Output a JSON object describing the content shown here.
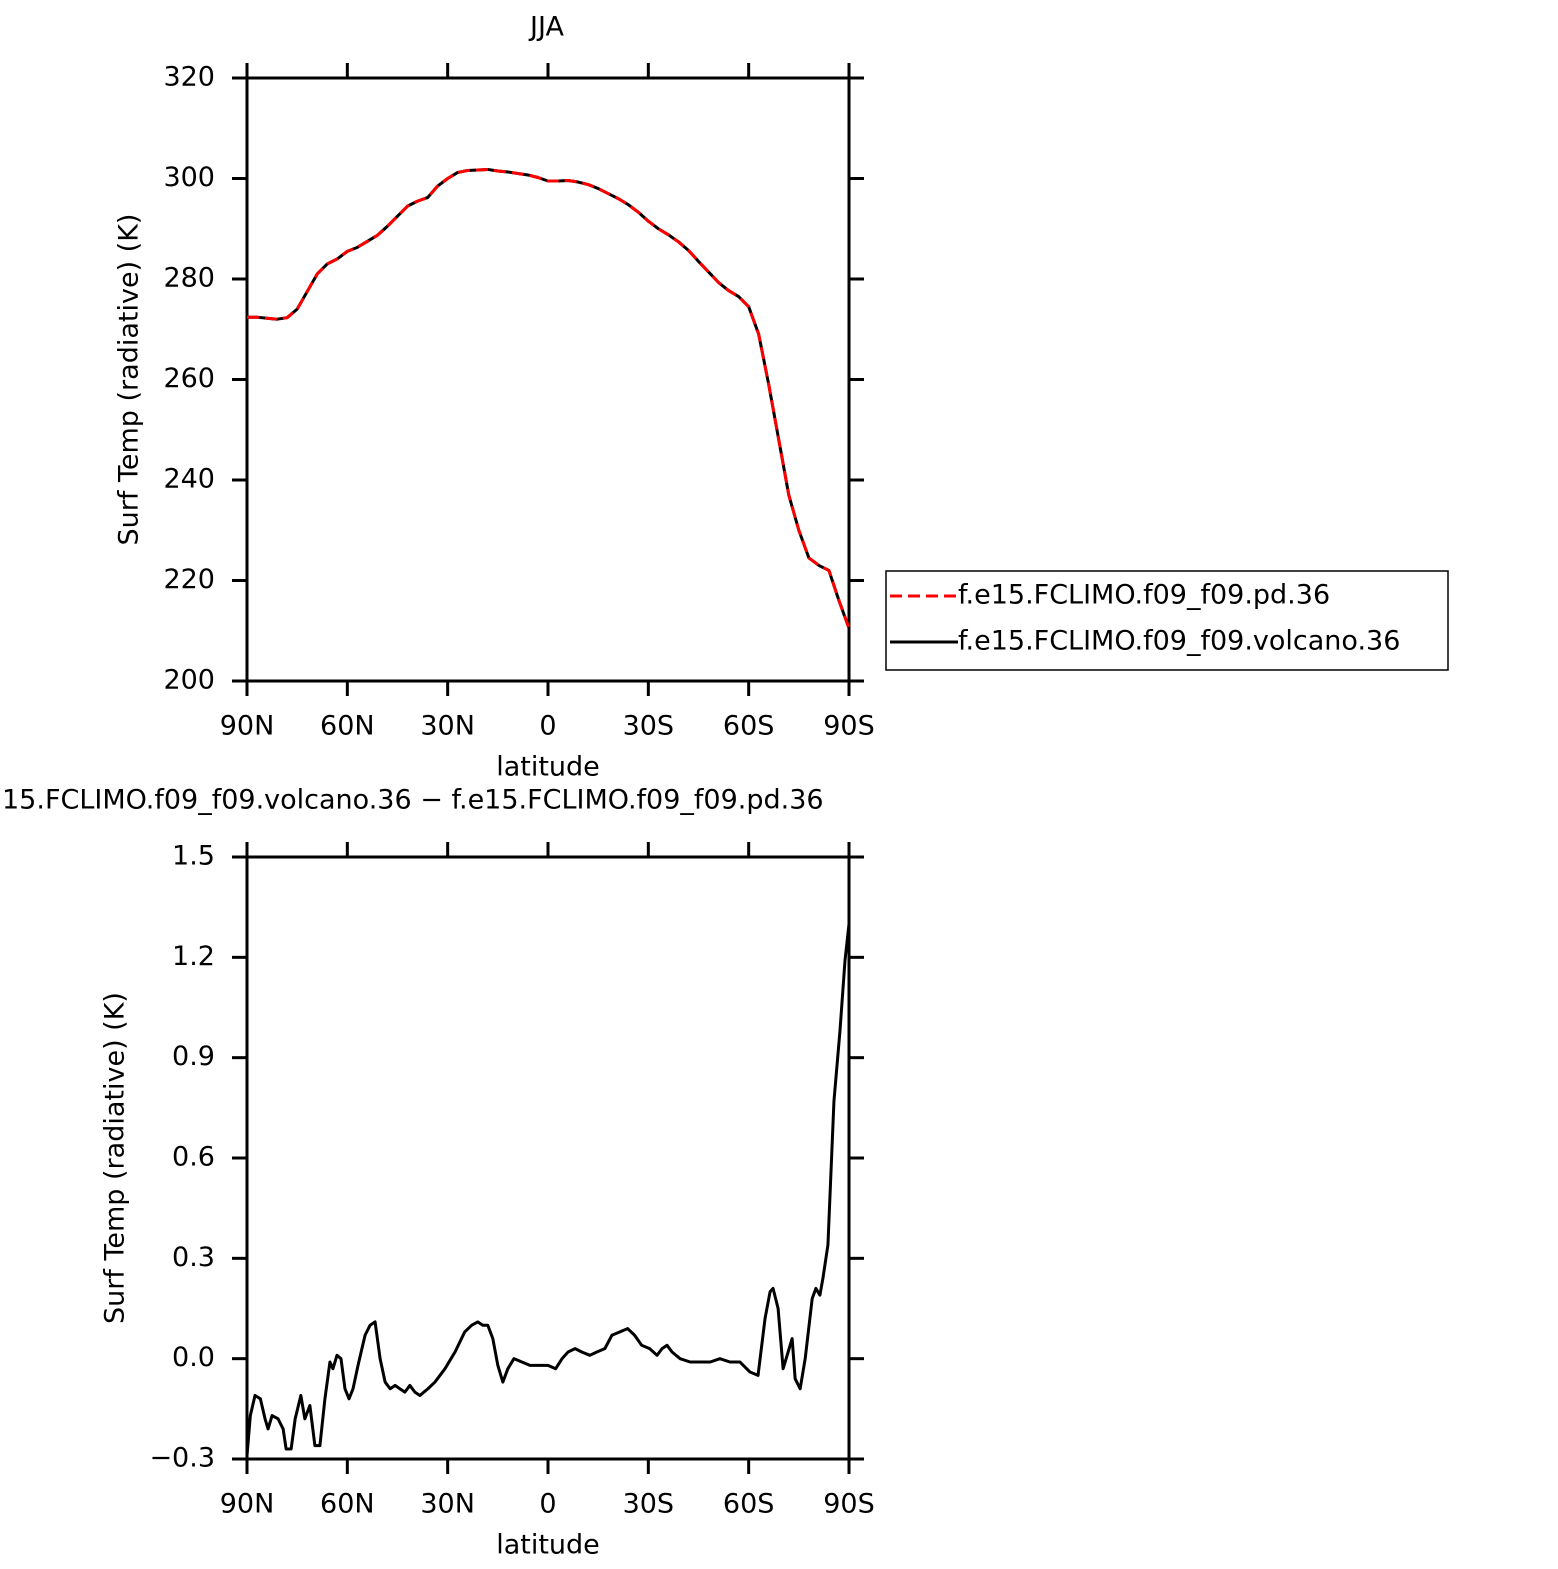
{
  "chart_data": [
    {
      "type": "line",
      "title": "JJA",
      "xlabel": "latitude",
      "ylabel": "Surf Temp (radiative) (K)",
      "x": [
        90,
        87,
        84,
        81,
        78,
        75,
        72,
        69,
        66,
        63,
        60,
        57,
        54,
        51,
        48,
        45,
        42,
        39,
        36,
        33,
        30,
        27,
        24,
        21,
        18,
        15,
        12,
        9,
        6,
        3,
        0,
        -3,
        -6,
        -9,
        -12,
        -15,
        -18,
        -21,
        -24,
        -27,
        -30,
        -33,
        -36,
        -39,
        -42,
        -45,
        -48,
        -51,
        -54,
        -57,
        -60,
        -63,
        -66,
        -69,
        -72,
        -75,
        -78,
        -81,
        -84,
        -87,
        -90
      ],
      "series": [
        {
          "name": "f.e15.FCLIMO.f09_f09.volcano.36",
          "color": "#000000",
          "linestyle": "solid",
          "values": [
            272.4,
            272.4,
            272.2,
            272,
            272.3,
            274,
            277.5,
            281,
            283,
            284,
            285.5,
            286.3,
            287.5,
            288.7,
            290.5,
            292.5,
            294.5,
            295.5,
            296.2,
            298.5,
            300,
            301.2,
            301.6,
            301.7,
            301.8,
            301.5,
            301.3,
            301,
            300.7,
            300.2,
            299.5,
            299.5,
            299.6,
            299.3,
            298.8,
            298,
            297,
            296,
            294.8,
            293.3,
            291.5,
            290,
            288.8,
            287.4,
            285.7,
            283.5,
            281.4,
            279.3,
            277.7,
            276.5,
            274.5,
            269,
            259,
            248,
            237,
            230,
            224.5,
            223,
            222,
            216,
            210.5
          ]
        },
        {
          "name": "f.e15.FCLIMO.f09_f09.pd.36",
          "color": "#ff0000",
          "linestyle": "dashed",
          "values": [
            272.4,
            272.4,
            272.2,
            272,
            272.3,
            274,
            277.5,
            281,
            283,
            284,
            285.5,
            286.3,
            287.5,
            288.7,
            290.5,
            292.5,
            294.5,
            295.5,
            296.2,
            298.5,
            300,
            301.2,
            301.6,
            301.7,
            301.8,
            301.5,
            301.3,
            301,
            300.7,
            300.2,
            299.5,
            299.5,
            299.6,
            299.3,
            298.8,
            298,
            297,
            296,
            294.8,
            293.3,
            291.5,
            290,
            288.8,
            287.4,
            285.7,
            283.5,
            281.4,
            279.3,
            277.7,
            276.5,
            274.5,
            269,
            259,
            248,
            237,
            230,
            224.5,
            223,
            222,
            216,
            210.5
          ]
        }
      ],
      "legend_order": [
        "f.e15.FCLIMO.f09_f09.pd.36",
        "f.e15.FCLIMO.f09_f09.volcano.36"
      ],
      "legend": "right",
      "xlim": [
        90,
        -90
      ],
      "xticks": [
        {
          "value": 90,
          "label": "90N"
        },
        {
          "value": 60,
          "label": "60N"
        },
        {
          "value": 30,
          "label": "30N"
        },
        0,
        {
          "value": -30,
          "label": "30S"
        },
        {
          "value": -60,
          "label": "60S"
        },
        {
          "value": -90,
          "label": "90S"
        }
      ],
      "ylim": [
        200,
        320
      ],
      "yticks": [
        200,
        220,
        240,
        260,
        280,
        300,
        320
      ]
    },
    {
      "type": "line",
      "title": "15.FCLIMO.f09_f09.volcano.36 − f.e15.FCLIMO.f09_f09.pd.36",
      "xlabel": "latitude",
      "ylabel": "Surf Temp (radiative) (K)",
      "color": "#000000",
      "x": [
        90,
        89,
        87.6,
        86,
        84.6,
        83.7,
        82.5,
        80.7,
        79.2,
        78.3,
        76.8,
        75.6,
        73.9,
        72.7,
        71.2,
        69.7,
        68.2,
        66.7,
        65.2,
        64.3,
        63.1,
        61.9,
        60.7,
        59.5,
        58.3,
        56.8,
        54.7,
        53.2,
        51.7,
        50.2,
        48.7,
        47.2,
        45.7,
        44.3,
        42.8,
        41.3,
        39.8,
        38.3,
        35.9,
        33.8,
        30.8,
        27.8,
        24.9,
        22.8,
        21,
        19.5,
        18,
        16.5,
        15,
        13.5,
        12,
        10.2,
        7.8,
        5.4,
        2.4,
        0,
        -2.3,
        -4.2,
        -6,
        -8.1,
        -10.1,
        -12.5,
        -14.6,
        -17,
        -19.1,
        -21.5,
        -23.8,
        -25.9,
        -28,
        -30.4,
        -32.6,
        -34.1,
        -35.6,
        -37.1,
        -39.5,
        -42.5,
        -45.5,
        -48.5,
        -51.4,
        -54.4,
        -57.4,
        -60.4,
        -62.8,
        -64.9,
        -66.4,
        -67.3,
        -68.8,
        -70.3,
        -71.5,
        -73,
        -73.9,
        -75.4,
        -76.9,
        -79,
        -80.1,
        -81.3,
        -82.2,
        -83.7,
        -85.5,
        -87.3,
        -88.8,
        -90
      ],
      "values": [
        -0.29,
        -0.17,
        -0.11,
        -0.12,
        -0.18,
        -0.21,
        -0.17,
        -0.18,
        -0.21,
        -0.27,
        -0.27,
        -0.18,
        -0.11,
        -0.18,
        -0.14,
        -0.26,
        -0.26,
        -0.12,
        -0.01,
        -0.03,
        0.01,
        0,
        -0.09,
        -0.12,
        -0.09,
        -0.02,
        0.07,
        0.1,
        0.11,
        0,
        -0.07,
        -0.09,
        -0.08,
        -0.09,
        -0.1,
        -0.08,
        -0.1,
        -0.11,
        -0.09,
        -0.07,
        -0.03,
        0.02,
        0.08,
        0.1,
        0.11,
        0.1,
        0.1,
        0.06,
        -0.02,
        -0.07,
        -0.03,
        0,
        -0.01,
        -0.02,
        -0.02,
        -0.02,
        -0.03,
        0,
        0.02,
        0.03,
        0.02,
        0.01,
        0.02,
        0.03,
        0.07,
        0.08,
        0.09,
        0.07,
        0.04,
        0.03,
        0.01,
        0.03,
        0.04,
        0.02,
        0,
        -0.01,
        -0.01,
        -0.01,
        0,
        -0.01,
        -0.01,
        -0.04,
        -0.05,
        0.12,
        0.2,
        0.21,
        0.15,
        -0.03,
        0.01,
        0.06,
        -0.06,
        -0.09,
        0,
        0.18,
        0.21,
        0.19,
        0.24,
        0.34,
        0.77,
        0.98,
        1.19,
        1.3
      ],
      "xlim": [
        90,
        -90
      ],
      "xticks": [
        {
          "value": 90,
          "label": "90N"
        },
        {
          "value": 60,
          "label": "60N"
        },
        {
          "value": 30,
          "label": "30N"
        },
        0,
        {
          "value": -30,
          "label": "30S"
        },
        {
          "value": -60,
          "label": "60S"
        },
        {
          "value": -90,
          "label": "90S"
        }
      ],
      "ylim": [
        -0.3,
        1.5
      ],
      "yticks": [
        {
          "value": -0.3,
          "label": "−0.3"
        },
        {
          "value": 0,
          "label": "0.0"
        },
        0.3,
        0.6,
        0.9,
        1.2,
        1.5
      ]
    }
  ]
}
